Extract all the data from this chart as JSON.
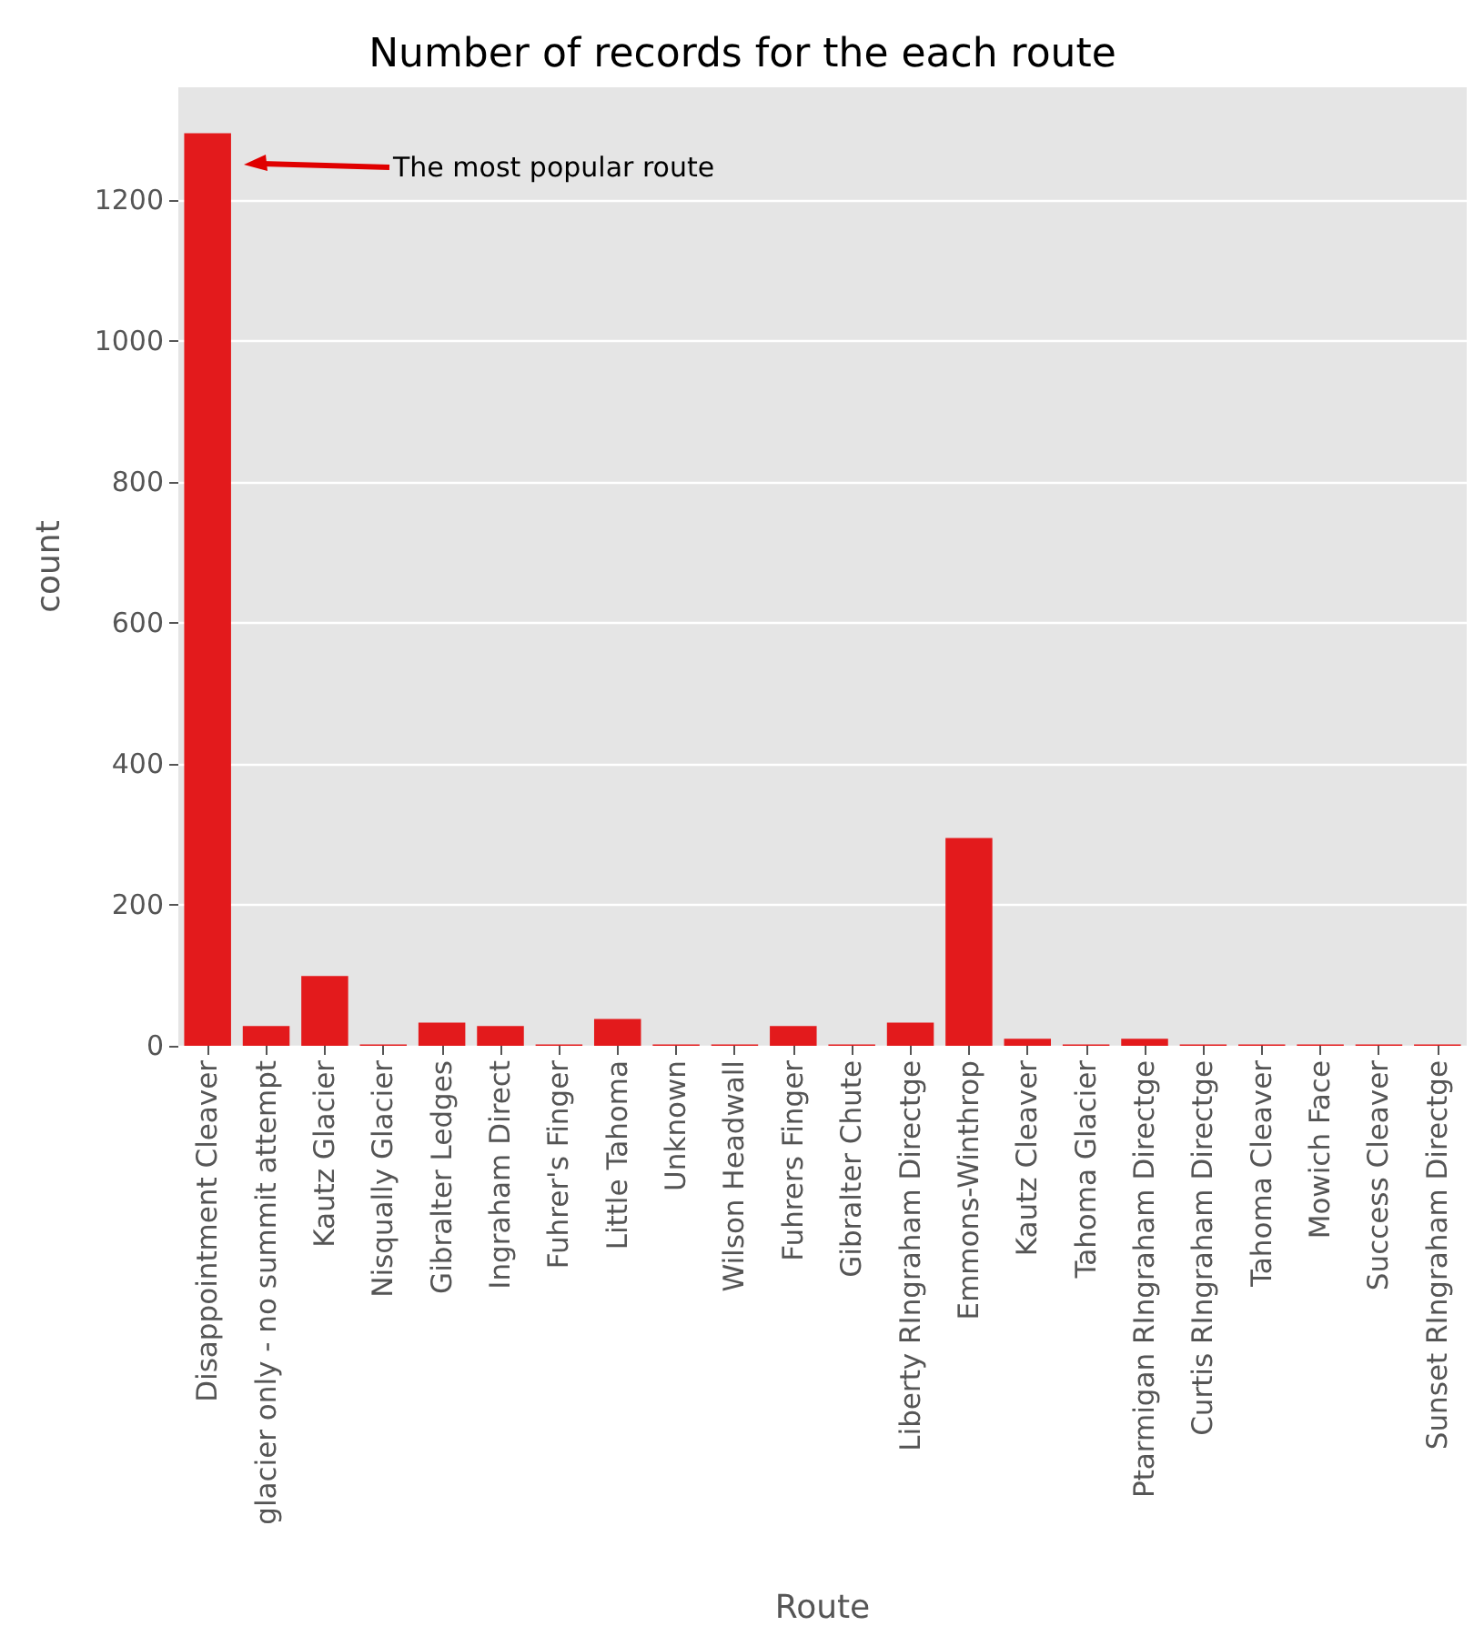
{
  "chart_data": {
    "type": "bar",
    "title": "Number of records for the each route",
    "xlabel": "Route",
    "ylabel": "count",
    "categories": [
      "Disappointment Cleaver",
      "glacier only - no summit attempt",
      "Kautz Glacier",
      "Nisqually Glacier",
      "Gibralter Ledges",
      "Ingraham Direct",
      "Fuhrer's Finger",
      "Little Tahoma",
      "Unknown",
      "Wilson Headwall",
      "Fuhrers Finger",
      "Gibralter Chute",
      "Liberty RIngraham Directge",
      "Emmons-Winthrop",
      "Kautz Cleaver",
      "Tahoma Glacier",
      "Ptarmigan RIngraham Directge",
      "Curtis RIngraham Directge",
      "Tahoma Cleaver",
      "Mowich Face",
      "Success Cleaver",
      "Sunset RIngraham Directge"
    ],
    "values": [
      1295,
      28,
      99,
      2,
      33,
      28,
      2,
      38,
      2,
      2,
      28,
      2,
      33,
      295,
      10,
      2,
      10,
      2,
      2,
      2,
      2,
      2
    ],
    "color": "#e31a1c",
    "ylim": [
      0,
      1360
    ],
    "yticks": [
      0,
      200,
      400,
      600,
      800,
      1000,
      1200
    ],
    "grid": "y",
    "annotations": [
      "The most popular route"
    ]
  }
}
